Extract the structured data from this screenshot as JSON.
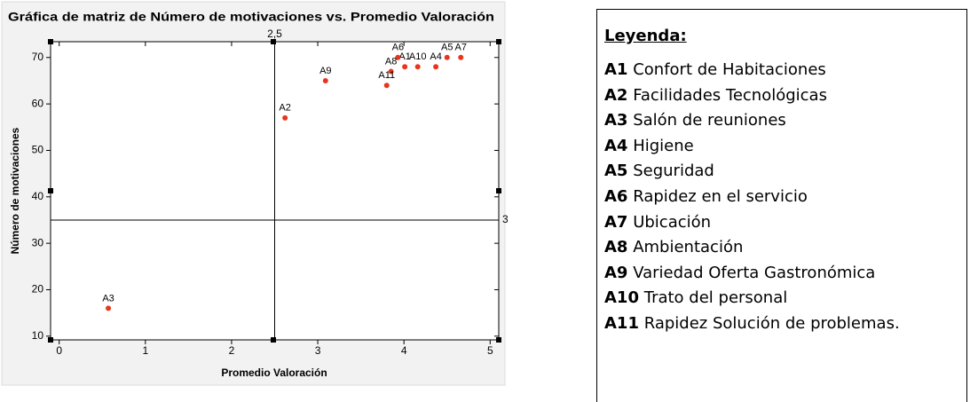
{
  "chart_data": {
    "type": "scatter",
    "title": "Gráfica de matriz de Número de motivaciones vs. Promedio Valoración",
    "xlabel": "Promedio Valoración",
    "ylabel": "Número de motivaciones",
    "xlim": [
      -0.1,
      5.1
    ],
    "ylim": [
      9.2,
      73.4
    ],
    "xticks": [
      0,
      1,
      2,
      3,
      4,
      5
    ],
    "yticks": [
      10,
      20,
      30,
      40,
      50,
      60,
      70
    ],
    "reference_lines": {
      "x": {
        "value": 2.5,
        "label": "2,5"
      },
      "y": 35
    },
    "series": [
      {
        "color": "#e8351c",
        "labels": [
          "A1",
          "A2",
          "A3",
          "A4",
          "A5",
          "A6",
          "A7",
          "A8",
          "A9",
          "A10",
          "A11"
        ],
        "x": [
          4.01,
          2.62,
          0.57,
          4.37,
          4.5,
          3.93,
          4.66,
          3.85,
          3.09,
          4.16,
          3.8
        ],
        "y": [
          68,
          57,
          16,
          68,
          70,
          70,
          70,
          67,
          65,
          68,
          64
        ]
      }
    ]
  },
  "legend": {
    "title": "Leyenda:",
    "items": [
      {
        "code": "A1",
        "text": "Confort de Habitaciones"
      },
      {
        "code": "A2",
        "text": "Facilidades Tecnológicas"
      },
      {
        "code": "A3",
        "text": "Salón de reuniones"
      },
      {
        "code": "A4",
        "text": "Higiene"
      },
      {
        "code": "A5",
        "text": "Seguridad"
      },
      {
        "code": "A6",
        "text": "Rapidez en el servicio"
      },
      {
        "code": "A7",
        "text": "Ubicación"
      },
      {
        "code": "A8",
        "text": "Ambientación"
      },
      {
        "code": "A9",
        "text": "Variedad Oferta Gastronómica"
      },
      {
        "code": "A10",
        "text": "Trato del personal"
      },
      {
        "code": "A11",
        "text": "Rapidez Solución de problemas."
      }
    ]
  }
}
